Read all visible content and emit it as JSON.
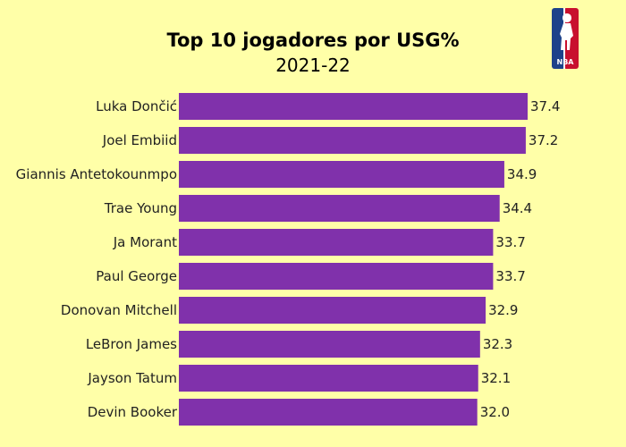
{
  "chart_data": {
    "type": "bar",
    "orientation": "horizontal",
    "title": "Top 10 jogadores por USG%",
    "subtitle": "2021-22",
    "categories": [
      "Luka Dončić",
      "Joel Embiid",
      "Giannis Antetokounmpo",
      "Trae Young",
      "Ja Morant",
      "Paul George",
      "Donovan Mitchell",
      "LeBron James",
      "Jayson Tatum",
      "Devin Booker"
    ],
    "values": [
      37.4,
      37.2,
      34.9,
      34.4,
      33.7,
      33.7,
      32.9,
      32.3,
      32.1,
      32.0
    ],
    "value_labels": [
      "37.4",
      "37.2",
      "34.9",
      "34.4",
      "33.7",
      "33.7",
      "32.9",
      "32.3",
      "32.1",
      "32.0"
    ],
    "xlim": [
      0,
      37.4
    ],
    "grid": false,
    "legend": "none",
    "bar_color": "#8031ab",
    "background_color": "#ffffa8",
    "logo": {
      "name": "nba-logo",
      "text": "NBA",
      "colors": [
        "#1d428a",
        "#c8102e"
      ]
    }
  }
}
